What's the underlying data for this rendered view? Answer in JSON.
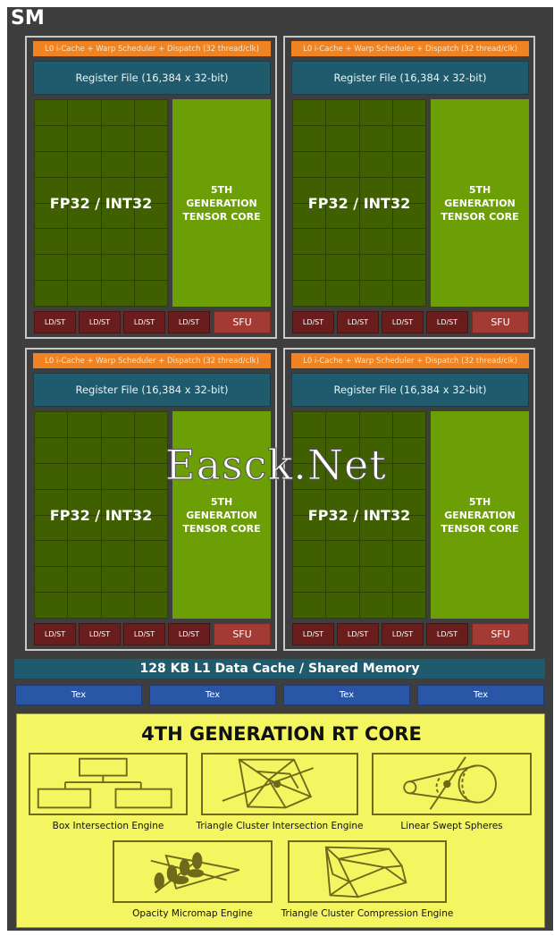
{
  "sm_label": "SM",
  "partition": {
    "scheduler": "L0 i-Cache + Warp Scheduler + Dispatch (32 thread/clk)",
    "register_file": "Register File (16,384 x 32-bit)",
    "fp_unit": "FP32 / INT32",
    "tensor_lines": [
      "5TH",
      "GENERATION",
      "TENSOR CORE"
    ],
    "ldst": "LD/ST",
    "sfu": "SFU"
  },
  "l1_cache": "128 KB L1 Data Cache / Shared Memory",
  "tex_units": [
    "Tex",
    "Tex",
    "Tex",
    "Tex"
  ],
  "rt_core": {
    "title": "4TH GENERATION RT CORE",
    "engines": [
      {
        "label": "Box Intersection Engine",
        "icon": "box-hierarchy-icon"
      },
      {
        "label": "Triangle Cluster Intersection Engine",
        "icon": "triangle-cluster-ray-icon"
      },
      {
        "label": "Linear Swept Spheres",
        "icon": "swept-spheres-icon"
      },
      {
        "label": "Opacity Micromap Engine",
        "icon": "leaf-micromap-icon"
      },
      {
        "label": "Triangle Cluster Compression Engine",
        "icon": "triangle-cluster-icon"
      }
    ]
  },
  "watermark": "Easck.Net",
  "colors": {
    "scheduler": "#f08423",
    "register": "#1f5b6c",
    "fp32": "#3f5f00",
    "tensor": "#6c9e05",
    "ldst": "#6a1d1d",
    "sfu": "#a33a33",
    "tex": "#2a56a8",
    "rt_core": "#f3f660"
  }
}
